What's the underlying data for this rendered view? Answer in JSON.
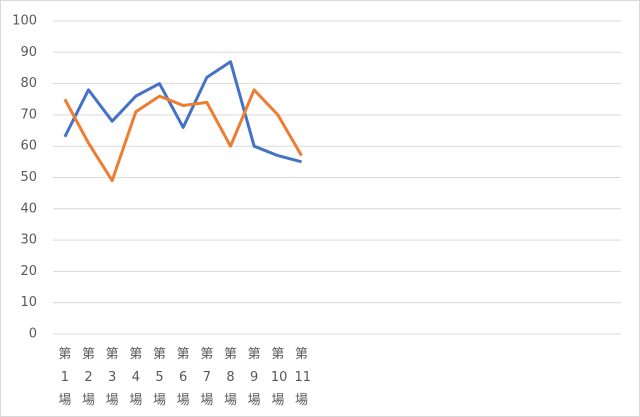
{
  "chart_data": {
    "type": "line",
    "categories": [
      "第1場",
      "第2場",
      "第3場",
      "第4場",
      "第5場",
      "第6場",
      "第7場",
      "第8場",
      "第9場",
      "第10場",
      "第11場",
      null,
      null,
      null,
      null,
      null,
      null,
      null,
      null,
      null,
      null,
      null,
      null,
      null
    ],
    "series": [
      {
        "color": "#4472c4",
        "values": [
          63,
          78,
          68,
          76,
          80,
          66,
          82,
          87,
          60,
          57,
          55,
          null,
          null,
          null,
          null,
          null,
          null,
          null,
          null,
          null,
          null,
          null,
          null,
          null
        ]
      },
      {
        "color": "#ed7d31",
        "values": [
          75,
          61,
          49,
          71,
          76,
          73,
          74,
          60,
          78,
          70,
          57,
          null,
          null,
          null,
          null,
          null,
          null,
          null,
          null,
          null,
          null,
          null,
          null,
          null
        ]
      }
    ],
    "ylim": [
      0,
      100
    ],
    "yticks": [
      0,
      10,
      20,
      30,
      40,
      50,
      60,
      70,
      80,
      90,
      100
    ],
    "grid": true
  }
}
